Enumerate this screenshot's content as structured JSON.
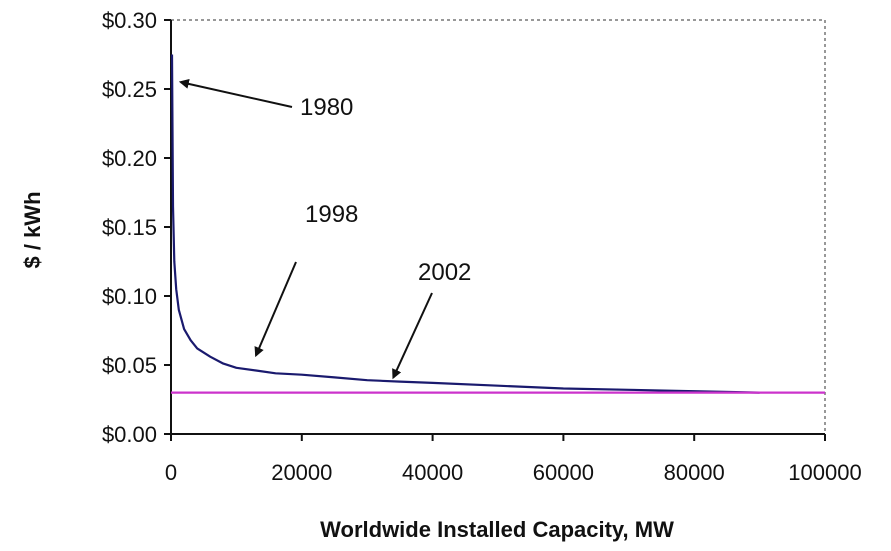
{
  "chart_data": {
    "type": "line",
    "xlabel": "Worldwide Installed Capacity, MW",
    "ylabel": "$ / kWh",
    "xlim": [
      0,
      100000
    ],
    "ylim": [
      0,
      0.3
    ],
    "x_ticks": [
      0,
      20000,
      40000,
      60000,
      80000,
      100000
    ],
    "x_tick_labels": [
      "0",
      "20000",
      "40000",
      "60000",
      "80000",
      "100000"
    ],
    "y_ticks": [
      0,
      0.05,
      0.1,
      0.15,
      0.2,
      0.25,
      0.3
    ],
    "y_tick_labels": [
      "$0.00",
      "$0.05",
      "$0.10",
      "$0.15",
      "$0.20",
      "$0.25",
      "$0.30"
    ],
    "grid": false,
    "legend": "none",
    "series": [
      {
        "color": "#1a1a6e",
        "x": [
          150,
          300,
          500,
          800,
          1200,
          2000,
          3000,
          4000,
          6000,
          8000,
          10000,
          13000,
          16000,
          20000,
          25000,
          30000,
          35000,
          40000,
          50000,
          60000,
          70000,
          80000,
          90000
        ],
        "y": [
          0.275,
          0.165,
          0.125,
          0.105,
          0.09,
          0.076,
          0.068,
          0.062,
          0.056,
          0.051,
          0.048,
          0.046,
          0.044,
          0.043,
          0.041,
          0.039,
          0.038,
          0.037,
          0.035,
          0.033,
          0.032,
          0.031,
          0.03
        ]
      },
      {
        "color": "#cc33cc",
        "x": [
          0,
          100000
        ],
        "y": [
          0.03,
          0.03
        ]
      }
    ],
    "annotations": [
      {
        "text": "1980",
        "x": 1500,
        "y": 0.255
      },
      {
        "text": "1998",
        "x": 13000,
        "y": 0.057
      },
      {
        "text": "2002",
        "x": 34000,
        "y": 0.041
      }
    ]
  }
}
